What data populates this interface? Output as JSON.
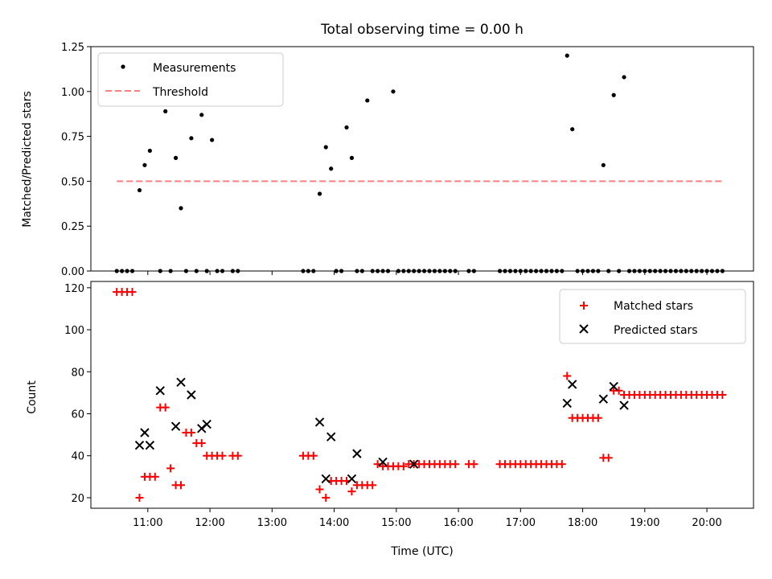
{
  "chart_data": {
    "title": "Total observing time = 0.00 h",
    "colors": {
      "measurements": "#000000",
      "threshold": "#ff7f7f",
      "matched": "#ff0000",
      "predicted": "#000000"
    },
    "panels": [
      {
        "type": "scatter",
        "ylabel": "Matched/Predicted stars",
        "ylim": [
          0,
          1.25
        ],
        "yticks": [
          "0.00",
          "0.25",
          "0.50",
          "0.75",
          "1.00",
          "1.25"
        ],
        "legend": {
          "placement": "upper-left",
          "entries": [
            "Measurements",
            "Threshold"
          ]
        },
        "series": [
          {
            "name": "Measurements",
            "marker": "dot",
            "x": [
              "10:30",
              "10:35",
              "10:40",
              "10:45",
              "10:52",
              "10:57",
              "11:02",
              "11:12",
              "11:17",
              "11:22",
              "11:27",
              "11:32",
              "11:37",
              "11:42",
              "11:47",
              "11:52",
              "11:57",
              "12:02",
              "12:07",
              "12:12",
              "12:22",
              "12:27",
              "13:30",
              "13:35",
              "13:40",
              "13:46",
              "13:52",
              "13:57",
              "14:02",
              "14:07",
              "14:12",
              "14:17",
              "14:22",
              "14:27",
              "14:32",
              "14:37",
              "14:42",
              "14:47",
              "14:52",
              "14:57",
              "15:02",
              "15:07",
              "15:12",
              "15:17",
              "15:22",
              "15:27",
              "15:32",
              "15:37",
              "15:42",
              "15:47",
              "15:52",
              "15:57",
              "16:10",
              "16:15",
              "16:40",
              "16:45",
              "16:50",
              "16:55",
              "17:00",
              "17:05",
              "17:10",
              "17:15",
              "17:20",
              "17:25",
              "17:30",
              "17:35",
              "17:40",
              "17:45",
              "17:50",
              "17:55",
              "18:00",
              "18:05",
              "18:10",
              "18:15",
              "18:20",
              "18:25",
              "18:30",
              "18:35",
              "18:40",
              "18:45",
              "18:50",
              "18:55",
              "19:00",
              "19:05",
              "19:10",
              "19:15",
              "19:20",
              "19:25",
              "19:30",
              "19:35",
              "19:40",
              "19:45",
              "19:50",
              "19:55",
              "20:00",
              "20:05",
              "20:10",
              "20:15"
            ],
            "y": [
              0,
              0,
              0,
              0,
              0.45,
              0.59,
              0.67,
              0,
              0.89,
              0,
              0.63,
              0.35,
              0,
              0.74,
              0,
              0.87,
              0,
              0.73,
              0,
              0,
              0,
              0,
              0,
              0,
              0,
              0.43,
              0.69,
              0.57,
              0,
              0,
              0.8,
              0.63,
              0,
              0,
              0.95,
              0,
              0,
              0,
              0,
              1.0,
              0,
              0,
              0,
              0,
              0,
              0,
              0,
              0,
              0,
              0,
              0,
              0,
              0,
              0,
              0,
              0,
              0,
              0,
              0,
              0,
              0,
              0,
              0,
              0,
              0,
              0,
              0,
              1.2,
              0.79,
              0,
              0,
              0,
              0,
              0,
              0.59,
              0,
              0.98,
              0,
              1.08,
              0,
              0,
              0,
              0,
              0,
              0,
              0,
              0,
              0,
              0,
              0,
              0,
              0,
              0,
              0,
              0,
              0,
              0,
              0
            ]
          },
          {
            "name": "Threshold",
            "type": "line",
            "style": "dashed",
            "x": [
              "10:30",
              "20:15"
            ],
            "y": [
              0.5,
              0.5
            ]
          }
        ]
      },
      {
        "type": "scatter",
        "ylabel": "Count",
        "xlabel": "Time (UTC)",
        "ylim": [
          15,
          123
        ],
        "yticks": [
          "20",
          "40",
          "60",
          "80",
          "100",
          "120"
        ],
        "xticks": [
          "11:00",
          "12:00",
          "13:00",
          "14:00",
          "15:00",
          "16:00",
          "17:00",
          "18:00",
          "19:00",
          "20:00"
        ],
        "xlim": [
          "10:05",
          "20:45"
        ],
        "legend": {
          "placement": "upper-right",
          "entries": [
            "Matched stars",
            "Predicted stars"
          ]
        },
        "series": [
          {
            "name": "Matched stars",
            "marker": "plus",
            "x": [
              "10:30",
              "10:35",
              "10:40",
              "10:45",
              "10:52",
              "10:57",
              "11:02",
              "11:07",
              "11:12",
              "11:17",
              "11:22",
              "11:27",
              "11:32",
              "11:37",
              "11:42",
              "11:47",
              "11:52",
              "11:57",
              "12:02",
              "12:07",
              "12:12",
              "12:22",
              "12:27",
              "13:30",
              "13:35",
              "13:40",
              "13:46",
              "13:52",
              "13:57",
              "14:02",
              "14:07",
              "14:12",
              "14:17",
              "14:22",
              "14:27",
              "14:32",
              "14:37",
              "14:42",
              "14:47",
              "14:52",
              "14:57",
              "15:02",
              "15:07",
              "15:12",
              "15:17",
              "15:22",
              "15:27",
              "15:32",
              "15:37",
              "15:42",
              "15:47",
              "15:52",
              "15:57",
              "16:10",
              "16:15",
              "16:40",
              "16:45",
              "16:50",
              "16:55",
              "17:00",
              "17:05",
              "17:10",
              "17:15",
              "17:20",
              "17:25",
              "17:30",
              "17:35",
              "17:40",
              "17:45",
              "17:50",
              "17:55",
              "18:00",
              "18:05",
              "18:10",
              "18:15",
              "18:20",
              "18:25",
              "18:30",
              "18:35",
              "18:40",
              "18:45",
              "18:50",
              "18:55",
              "19:00",
              "19:05",
              "19:10",
              "19:15",
              "19:20",
              "19:25",
              "19:30",
              "19:35",
              "19:40",
              "19:45",
              "19:50",
              "19:55",
              "20:00",
              "20:05",
              "20:10",
              "20:15"
            ],
            "y": [
              118,
              118,
              118,
              118,
              20,
              30,
              30,
              30,
              63,
              63,
              34,
              26,
              26,
              51,
              51,
              46,
              46,
              40,
              40,
              40,
              40,
              40,
              40,
              40,
              40,
              40,
              24,
              20,
              28,
              28,
              28,
              28,
              23,
              26,
              26,
              26,
              26,
              36,
              35,
              35,
              35,
              35,
              35,
              36,
              36,
              36,
              36,
              36,
              36,
              36,
              36,
              36,
              36,
              36,
              36,
              36,
              36,
              36,
              36,
              36,
              36,
              36,
              36,
              36,
              36,
              36,
              36,
              36,
              78,
              58,
              58,
              58,
              58,
              58,
              58,
              39,
              39,
              71,
              71,
              69,
              69,
              69,
              69,
              69,
              69,
              69,
              69,
              69,
              69,
              69,
              69,
              69,
              69,
              69,
              69,
              69,
              69,
              69,
              69
            ]
          },
          {
            "name": "Predicted stars",
            "marker": "x",
            "x": [
              "10:52",
              "10:57",
              "11:02",
              "11:12",
              "11:27",
              "11:32",
              "11:42",
              "11:52",
              "11:57",
              "13:46",
              "13:52",
              "13:57",
              "14:17",
              "14:22",
              "14:47",
              "15:17",
              "17:45",
              "17:50",
              "18:20",
              "18:30",
              "18:40"
            ],
            "y": [
              45,
              51,
              45,
              71,
              54,
              75,
              69,
              53,
              55,
              56,
              29,
              49,
              29,
              41,
              37,
              36,
              65,
              74,
              67,
              73,
              64
            ]
          }
        ]
      }
    ]
  }
}
